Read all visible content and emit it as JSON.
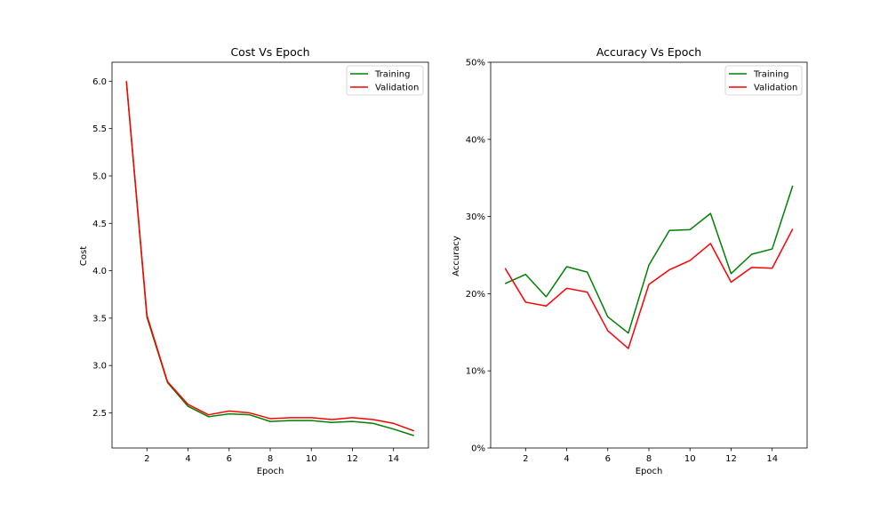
{
  "chart_data": [
    {
      "type": "line",
      "title": "Cost Vs Epoch",
      "xlabel": "Epoch",
      "ylabel": "Cost",
      "xlim": [
        0.3,
        15.7
      ],
      "ylim": [
        2.13,
        6.2
      ],
      "xticks": [
        2,
        4,
        6,
        8,
        10,
        12,
        14
      ],
      "yticks": [
        2.5,
        3.0,
        3.5,
        4.0,
        4.5,
        5.0,
        5.5,
        6.0
      ],
      "ytick_labels": [
        "2.5",
        "3.0",
        "3.5",
        "4.0",
        "4.5",
        "5.0",
        "5.5",
        "6.0"
      ],
      "legend": {
        "placement": "top-right"
      },
      "x": [
        1,
        2,
        3,
        4,
        5,
        6,
        7,
        8,
        9,
        10,
        11,
        12,
        13,
        14,
        15
      ],
      "series": [
        {
          "name": "Training",
          "color": "#008000",
          "values": [
            6.0,
            3.51,
            2.82,
            2.57,
            2.46,
            2.49,
            2.48,
            2.41,
            2.42,
            2.42,
            2.4,
            2.41,
            2.39,
            2.33,
            2.26
          ]
        },
        {
          "name": "Validation",
          "color": "#ff0000",
          "values": [
            6.0,
            3.53,
            2.83,
            2.59,
            2.48,
            2.52,
            2.5,
            2.44,
            2.45,
            2.45,
            2.43,
            2.45,
            2.43,
            2.39,
            2.31
          ]
        }
      ]
    },
    {
      "type": "line",
      "title": "Accuracy Vs Epoch",
      "xlabel": "Epoch",
      "ylabel": "Accuracy",
      "xlim": [
        0.3,
        15.7
      ],
      "ylim": [
        0,
        0.5
      ],
      "xticks": [
        2,
        4,
        6,
        8,
        10,
        12,
        14
      ],
      "yticks": [
        0,
        0.1,
        0.2,
        0.3,
        0.4,
        0.5
      ],
      "ytick_labels": [
        "0%",
        "10%",
        "20%",
        "30%",
        "40%",
        "50%"
      ],
      "legend": {
        "placement": "top-right"
      },
      "x": [
        1,
        2,
        3,
        4,
        5,
        6,
        7,
        8,
        9,
        10,
        11,
        12,
        13,
        14,
        15
      ],
      "series": [
        {
          "name": "Training",
          "color": "#008000",
          "values": [
            0.213,
            0.225,
            0.196,
            0.235,
            0.228,
            0.17,
            0.149,
            0.237,
            0.282,
            0.283,
            0.304,
            0.226,
            0.251,
            0.258,
            0.34
          ]
        },
        {
          "name": "Validation",
          "color": "#ff0000",
          "values": [
            0.233,
            0.189,
            0.184,
            0.207,
            0.202,
            0.152,
            0.129,
            0.212,
            0.231,
            0.243,
            0.265,
            0.215,
            0.234,
            0.233,
            0.284
          ]
        }
      ]
    }
  ]
}
